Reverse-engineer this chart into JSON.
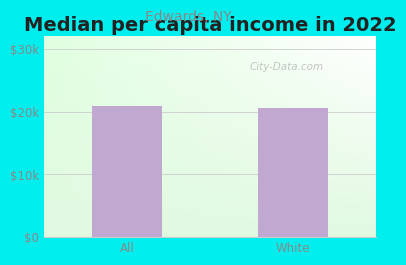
{
  "title": "Median per capita income in 2022",
  "subtitle": "Edwards, NY",
  "categories": [
    "All",
    "White"
  ],
  "values": [
    20800,
    20500
  ],
  "bar_color": "#C0A8D0",
  "title_fontsize": 14,
  "title_color": "#222222",
  "subtitle_fontsize": 10,
  "subtitle_color": "#888888",
  "tick_color": "#888888",
  "tick_fontsize": 8.5,
  "ylim": [
    0,
    32000
  ],
  "yticks": [
    0,
    10000,
    20000,
    30000
  ],
  "ytick_labels": [
    "$0",
    "$10k",
    "$20k",
    "$30k"
  ],
  "bg_outer_color": "#00EEEE",
  "watermark": "City-Data.com",
  "watermark_color": "#bbbbbb",
  "grid_color": "#cccccc",
  "spine_color": "#cccccc"
}
